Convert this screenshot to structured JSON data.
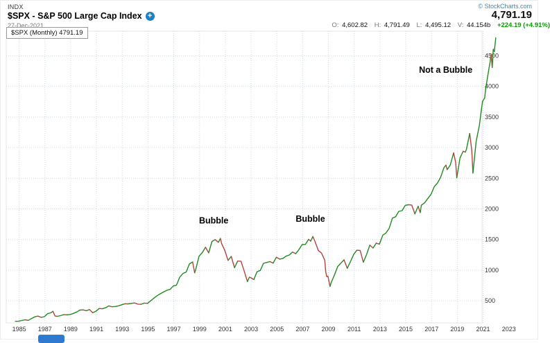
{
  "header": {
    "exchange": "INDX",
    "symbol_title": "$SPX - S&P 500 Large Cap Index",
    "date": "27-Dec-2021",
    "copyright": "© StockCharts.com",
    "last_price": "4,791.19",
    "plus_icon": "+",
    "quote": {
      "open_label": "O:",
      "open": "4,602.82",
      "high_label": "H:",
      "high": "4,791.49",
      "low_label": "L:",
      "low": "4,495.12",
      "volume_label": "V:",
      "volume": "44.154b",
      "change": "+224.19 (+4.91%)"
    }
  },
  "legend": {
    "text": "$SPX (Monthly) 4791.19"
  },
  "chart_data": {
    "type": "line",
    "title": "$SPX (Monthly)",
    "symbol": "$SPX",
    "timeframe": "Monthly",
    "last": 4791.19,
    "xlabel": "",
    "ylabel": "",
    "grid": true,
    "legend_position": "none",
    "xlim": [
      1984.0,
      2023.5
    ],
    "ylim": [
      140,
      4900
    ],
    "x_ticks": [
      1985,
      1987,
      1989,
      1991,
      1993,
      1995,
      1997,
      1999,
      2001,
      2003,
      2005,
      2007,
      2009,
      2011,
      2013,
      2015,
      2017,
      2019,
      2021,
      2023
    ],
    "y_ticks": [
      500,
      1000,
      1500,
      2000,
      2500,
      3000,
      3500,
      4000,
      4500
    ],
    "up_color": "#1f8a1f",
    "down_color": "#b8403c",
    "grid_color": "#ccd9e3",
    "axis_text_color": "#333333",
    "annotation_color": "#000000",
    "annotations": [
      {
        "text": "Bubble",
        "x": 2000.1,
        "y": 1760
      },
      {
        "text": "Bubble",
        "x": 2007.6,
        "y": 1790
      },
      {
        "text": "Not a Bubble",
        "x": 2018.1,
        "y": 4220
      }
    ],
    "points": [
      [
        1984.71,
        166
      ],
      [
        1984.96,
        167
      ],
      [
        1985.21,
        180
      ],
      [
        1985.46,
        191
      ],
      [
        1985.71,
        182
      ],
      [
        1985.96,
        211
      ],
      [
        1986.21,
        239
      ],
      [
        1986.46,
        251
      ],
      [
        1986.71,
        231
      ],
      [
        1986.96,
        242
      ],
      [
        1987.21,
        292
      ],
      [
        1987.46,
        304
      ],
      [
        1987.62,
        330
      ],
      [
        1987.79,
        252
      ],
      [
        1987.96,
        247
      ],
      [
        1988.21,
        259
      ],
      [
        1988.46,
        274
      ],
      [
        1988.71,
        272
      ],
      [
        1988.96,
        278
      ],
      [
        1989.21,
        295
      ],
      [
        1989.46,
        318
      ],
      [
        1989.71,
        349
      ],
      [
        1989.96,
        353
      ],
      [
        1990.21,
        339
      ],
      [
        1990.46,
        358
      ],
      [
        1990.71,
        306
      ],
      [
        1990.96,
        330
      ],
      [
        1991.21,
        375
      ],
      [
        1991.46,
        371
      ],
      [
        1991.71,
        388
      ],
      [
        1991.96,
        417
      ],
      [
        1992.21,
        404
      ],
      [
        1992.46,
        408
      ],
      [
        1992.71,
        418
      ],
      [
        1992.96,
        436
      ],
      [
        1993.21,
        452
      ],
      [
        1993.46,
        451
      ],
      [
        1993.71,
        459
      ],
      [
        1993.96,
        466
      ],
      [
        1994.21,
        446
      ],
      [
        1994.46,
        444
      ],
      [
        1994.71,
        463
      ],
      [
        1994.96,
        459
      ],
      [
        1995.21,
        501
      ],
      [
        1995.46,
        545
      ],
      [
        1995.71,
        584
      ],
      [
        1995.96,
        616
      ],
      [
        1996.21,
        645
      ],
      [
        1996.46,
        671
      ],
      [
        1996.71,
        687
      ],
      [
        1996.96,
        741
      ],
      [
        1997.21,
        757
      ],
      [
        1997.46,
        885
      ],
      [
        1997.71,
        947
      ],
      [
        1997.96,
        970
      ],
      [
        1998.21,
        1102
      ],
      [
        1998.46,
        1134
      ],
      [
        1998.62,
        957
      ],
      [
        1998.71,
        1017
      ],
      [
        1998.96,
        1229
      ],
      [
        1999.21,
        1286
      ],
      [
        1999.46,
        1373
      ],
      [
        1999.71,
        1283
      ],
      [
        1999.96,
        1469
      ],
      [
        2000.21,
        1499
      ],
      [
        2000.46,
        1455
      ],
      [
        2000.62,
        1518
      ],
      [
        2000.71,
        1436
      ],
      [
        2000.96,
        1320
      ],
      [
        2001.21,
        1160
      ],
      [
        2001.46,
        1224
      ],
      [
        2001.71,
        1041
      ],
      [
        2001.96,
        1148
      ],
      [
        2002.21,
        1147
      ],
      [
        2002.46,
        990
      ],
      [
        2002.71,
        815
      ],
      [
        2002.87,
        886
      ],
      [
        2002.96,
        880
      ],
      [
        2003.21,
        848
      ],
      [
        2003.46,
        975
      ],
      [
        2003.71,
        996
      ],
      [
        2003.96,
        1112
      ],
      [
        2004.21,
        1126
      ],
      [
        2004.46,
        1141
      ],
      [
        2004.71,
        1115
      ],
      [
        2004.96,
        1212
      ],
      [
        2005.21,
        1181
      ],
      [
        2005.46,
        1191
      ],
      [
        2005.71,
        1229
      ],
      [
        2005.96,
        1248
      ],
      [
        2006.21,
        1295
      ],
      [
        2006.46,
        1270
      ],
      [
        2006.71,
        1336
      ],
      [
        2006.96,
        1418
      ],
      [
        2007.21,
        1421
      ],
      [
        2007.46,
        1503
      ],
      [
        2007.62,
        1474
      ],
      [
        2007.79,
        1549
      ],
      [
        2007.96,
        1468
      ],
      [
        2008.21,
        1323
      ],
      [
        2008.46,
        1280
      ],
      [
        2008.71,
        1166
      ],
      [
        2008.79,
        969
      ],
      [
        2008.87,
        896
      ],
      [
        2008.96,
        903
      ],
      [
        2009.12,
        735
      ],
      [
        2009.21,
        798
      ],
      [
        2009.46,
        919
      ],
      [
        2009.71,
        1057
      ],
      [
        2009.96,
        1115
      ],
      [
        2010.21,
        1169
      ],
      [
        2010.46,
        1031
      ],
      [
        2010.71,
        1141
      ],
      [
        2010.96,
        1258
      ],
      [
        2011.21,
        1326
      ],
      [
        2011.46,
        1321
      ],
      [
        2011.71,
        1131
      ],
      [
        2011.96,
        1258
      ],
      [
        2012.21,
        1408
      ],
      [
        2012.46,
        1362
      ],
      [
        2012.71,
        1441
      ],
      [
        2012.96,
        1426
      ],
      [
        2013.21,
        1569
      ],
      [
        2013.46,
        1606
      ],
      [
        2013.71,
        1682
      ],
      [
        2013.96,
        1848
      ],
      [
        2014.21,
        1872
      ],
      [
        2014.46,
        1960
      ],
      [
        2014.71,
        1972
      ],
      [
        2014.96,
        2059
      ],
      [
        2015.21,
        2068
      ],
      [
        2015.46,
        2063
      ],
      [
        2015.62,
        1972
      ],
      [
        2015.71,
        1920
      ],
      [
        2015.96,
        2044
      ],
      [
        2016.12,
        1940
      ],
      [
        2016.21,
        2060
      ],
      [
        2016.46,
        2099
      ],
      [
        2016.71,
        2168
      ],
      [
        2016.96,
        2239
      ],
      [
        2017.21,
        2363
      ],
      [
        2017.46,
        2423
      ],
      [
        2017.71,
        2519
      ],
      [
        2017.96,
        2674
      ],
      [
        2018.12,
        2714
      ],
      [
        2018.21,
        2641
      ],
      [
        2018.46,
        2718
      ],
      [
        2018.71,
        2914
      ],
      [
        2018.87,
        2760
      ],
      [
        2018.96,
        2507
      ],
      [
        2019.21,
        2834
      ],
      [
        2019.46,
        2942
      ],
      [
        2019.62,
        2926
      ],
      [
        2019.71,
        2977
      ],
      [
        2019.96,
        3231
      ],
      [
        2020.12,
        2954
      ],
      [
        2020.21,
        2585
      ],
      [
        2020.46,
        3100
      ],
      [
        2020.71,
        3363
      ],
      [
        2020.87,
        3622
      ],
      [
        2020.96,
        3756
      ],
      [
        2021.12,
        3811
      ],
      [
        2021.21,
        3973
      ],
      [
        2021.37,
        4181
      ],
      [
        2021.46,
        4298
      ],
      [
        2021.54,
        4395
      ],
      [
        2021.62,
        4523
      ],
      [
        2021.71,
        4308
      ],
      [
        2021.79,
        4605
      ],
      [
        2021.87,
        4567
      ],
      [
        2021.98,
        4791.19
      ]
    ]
  }
}
